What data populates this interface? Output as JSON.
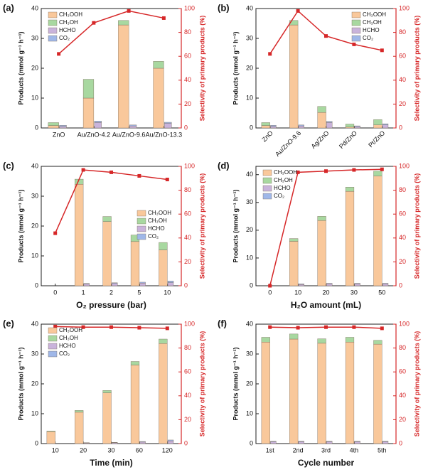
{
  "chart_data": [
    {
      "type": "bar",
      "label": "(a)",
      "ylabel": "Products (mmol g⁻¹ h⁻¹)",
      "y2label": "Selectivity of primary products (%)",
      "categories": [
        "ZnO",
        "Au/ZnO-4.2",
        "Au/ZnO-9.6",
        "Au/ZnO-13.3"
      ],
      "ylim": [
        0,
        40
      ],
      "yticks": [
        0,
        10,
        20,
        30,
        40
      ],
      "y2lim": [
        0,
        100
      ],
      "y2ticks": [
        0,
        20,
        40,
        60,
        80,
        100
      ],
      "legend": "upper left",
      "series": [
        {
          "name": "CH₃OOH",
          "color": "#f9c89b",
          "stack": 1,
          "values": [
            0.8,
            10,
            34.5,
            20
          ]
        },
        {
          "name": "CH₃OH",
          "color": "#a8d8a0",
          "stack": 1,
          "values": [
            1.0,
            6.3,
            1.5,
            2.3
          ]
        },
        {
          "name": "HCHO",
          "color": "#c9b3db",
          "stack": 2,
          "values": [
            0.5,
            1.8,
            0.7,
            1.5
          ]
        },
        {
          "name": "CO₂",
          "color": "#9fb7e8",
          "stack": 2,
          "values": [
            0.4,
            0.5,
            0.3,
            0.4
          ]
        },
        {
          "color": "#d62728",
          "axis": "y2",
          "values": [
            62,
            88,
            98,
            92
          ]
        }
      ]
    },
    {
      "type": "bar",
      "label": "(b)",
      "ylabel": "Products (mmol g⁻¹ h⁻¹)",
      "y2label": "Selectivity of primary products (%)",
      "categories": [
        "ZnO",
        "Au/ZnO-9.6",
        "Ag/ZnO",
        "Pd/ZnO",
        "Pt/ZnO"
      ],
      "xtick_rotation": 45,
      "ylim": [
        0,
        40
      ],
      "yticks": [
        0,
        10,
        20,
        30,
        40
      ],
      "y2lim": [
        0,
        100
      ],
      "y2ticks": [
        0,
        20,
        40,
        60,
        80,
        100
      ],
      "legend": "upper right",
      "series": [
        {
          "name": "CH₃OOH",
          "color": "#f9c89b",
          "stack": 1,
          "values": [
            0.8,
            34.5,
            5.2,
            0.3,
            1.0
          ]
        },
        {
          "name": "CH₃OH",
          "color": "#a8d8a0",
          "stack": 1,
          "values": [
            1.0,
            1.5,
            2.0,
            1.0,
            1.8
          ]
        },
        {
          "name": "HCHO",
          "color": "#c9b3db",
          "stack": 2,
          "values": [
            0.5,
            0.7,
            1.8,
            0.4,
            1.0
          ]
        },
        {
          "name": "CO₂",
          "color": "#9fb7e8",
          "stack": 2,
          "values": [
            0.4,
            0.3,
            0.4,
            0.3,
            0.4
          ]
        },
        {
          "color": "#d62728",
          "axis": "y2",
          "values": [
            62,
            98,
            77,
            70,
            65
          ]
        }
      ]
    },
    {
      "type": "bar",
      "label": "(c)",
      "xlabel": "O₂ pressure (bar)",
      "ylabel": "Products (mmol g⁻¹ h⁻¹)",
      "y2label": "Selectivity of primary products (%)",
      "categories": [
        "0",
        "1",
        "2",
        "5",
        "10"
      ],
      "ylim": [
        0,
        40
      ],
      "yticks": [
        0,
        10,
        20,
        30,
        40
      ],
      "y2lim": [
        0,
        100
      ],
      "y2ticks": [
        0,
        20,
        40,
        60,
        80,
        100
      ],
      "legend": "center right",
      "series": [
        {
          "name": "CH₃OOH",
          "color": "#f9c89b",
          "stack": 1,
          "values": [
            0,
            34,
            21.5,
            14.8,
            12
          ]
        },
        {
          "name": "CH₃OH",
          "color": "#a8d8a0",
          "stack": 1,
          "values": [
            0,
            1.7,
            1.7,
            2.2,
            2.5
          ]
        },
        {
          "name": "HCHO",
          "color": "#c9b3db",
          "stack": 2,
          "values": [
            0,
            0.6,
            0.8,
            0.9,
            1.0
          ]
        },
        {
          "name": "CO₂",
          "color": "#9fb7e8",
          "stack": 2,
          "values": [
            0,
            0.2,
            0.2,
            0.3,
            0.6
          ]
        },
        {
          "color": "#d62728",
          "axis": "y2",
          "values": [
            44,
            97,
            95,
            92,
            89
          ]
        }
      ]
    },
    {
      "type": "bar",
      "label": "(d)",
      "xlabel": "H₂O amount (mL)",
      "ylabel": "Products (mmol g⁻¹ h⁻¹)",
      "y2label": "Selectivity of primary products (%)",
      "categories": [
        "0",
        "10",
        "20",
        "30",
        "50"
      ],
      "ylim": [
        0,
        43
      ],
      "yticks": [
        0,
        10,
        20,
        30,
        40
      ],
      "y2lim": [
        0,
        100
      ],
      "y2ticks": [
        0,
        20,
        40,
        60,
        80,
        100
      ],
      "legend": "upper left",
      "series": [
        {
          "name": "CH₃OOH",
          "color": "#f9c89b",
          "stack": 1,
          "values": [
            0,
            16,
            23.5,
            34,
            39.5
          ]
        },
        {
          "name": "CH₃OH",
          "color": "#a8d8a0",
          "stack": 1,
          "values": [
            0,
            1,
            1.5,
            1.5,
            1.8
          ]
        },
        {
          "name": "HCHO",
          "color": "#c9b3db",
          "stack": 2,
          "values": [
            0,
            0.5,
            0.7,
            0.7,
            0.7
          ]
        },
        {
          "name": "CO₂",
          "color": "#9fb7e8",
          "stack": 2,
          "values": [
            0,
            0.2,
            0.2,
            0.2,
            0.2
          ]
        },
        {
          "color": "#d62728",
          "axis": "y2",
          "values": [
            0,
            95,
            96,
            97,
            97.5
          ]
        }
      ]
    },
    {
      "type": "bar",
      "label": "(e)",
      "xlabel": "Time (min)",
      "ylabel": "Products (mmol g⁻¹ h⁻¹)",
      "y2label": "Selectivity of primary products (%)",
      "categories": [
        "10",
        "20",
        "30",
        "60",
        "120"
      ],
      "ylim": [
        0,
        40
      ],
      "yticks": [
        0,
        10,
        20,
        30,
        40
      ],
      "y2lim": [
        0,
        100
      ],
      "y2ticks": [
        0,
        20,
        40,
        60,
        80,
        100
      ],
      "legend": "upper left",
      "series": [
        {
          "name": "CH₃OOH",
          "color": "#f9c89b",
          "stack": 1,
          "values": [
            4,
            10.5,
            17,
            26.3,
            33.5
          ]
        },
        {
          "name": "CH₃OH",
          "color": "#a8d8a0",
          "stack": 1,
          "values": [
            0.2,
            0.6,
            0.8,
            1.2,
            1.5
          ]
        },
        {
          "name": "HCHO",
          "color": "#c9b3db",
          "stack": 2,
          "values": [
            0,
            0.2,
            0.3,
            0.5,
            0.9
          ]
        },
        {
          "name": "CO₂",
          "color": "#9fb7e8",
          "stack": 2,
          "values": [
            0,
            0.1,
            0.1,
            0.2,
            0.3
          ]
        },
        {
          "color": "#d62728",
          "axis": "y2",
          "values": [
            98,
            97.5,
            97.5,
            97,
            96.5
          ]
        }
      ]
    },
    {
      "type": "bar",
      "label": "(f)",
      "xlabel": "Cycle number",
      "ylabel": "Products (mmol g⁻¹ h⁻¹)",
      "y2label": "Selectivity of primary products (%)",
      "categories": [
        "1st",
        "2nd",
        "3rd",
        "4th",
        "5th"
      ],
      "ylim": [
        0,
        40
      ],
      "yticks": [
        0,
        10,
        20,
        30,
        40
      ],
      "y2lim": [
        0,
        100
      ],
      "y2ticks": [
        0,
        20,
        40,
        60,
        80,
        100
      ],
      "series": [
        {
          "color": "#f9c89b",
          "stack": 1,
          "values": [
            34,
            35,
            33.6,
            34,
            33.3
          ]
        },
        {
          "color": "#a8d8a0",
          "stack": 1,
          "values": [
            1.6,
            1.7,
            1.5,
            1.6,
            1.3
          ]
        },
        {
          "color": "#c9b3db",
          "stack": 2,
          "values": [
            0.6,
            0.6,
            0.6,
            0.6,
            0.6
          ]
        },
        {
          "color": "#9fb7e8",
          "stack": 2,
          "values": [
            0.2,
            0.2,
            0.2,
            0.2,
            0.2
          ]
        },
        {
          "color": "#d62728",
          "axis": "y2",
          "values": [
            97.5,
            97,
            97.5,
            97.5,
            96.5
          ]
        }
      ]
    }
  ]
}
